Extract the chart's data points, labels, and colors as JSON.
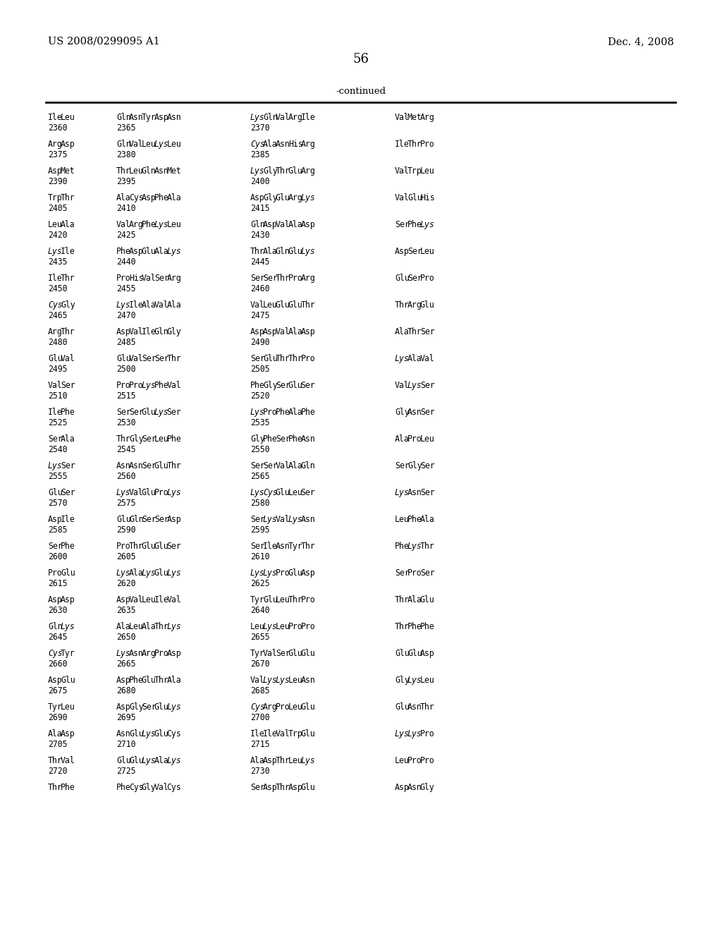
{
  "header_left": "US 2008/0299095 A1",
  "header_right": "Dec. 4, 2008",
  "page_number": "56",
  "continued_text": "-continued",
  "background_color": "#ffffff",
  "text_color": "#000000",
  "figsize": [
    10.24,
    13.2
  ],
  "dpi": 100,
  "rows": [
    [
      "Ile Leu",
      "2360",
      "Gln Asn Tyr Asp Asn",
      "2365",
      "Lys Gln Val Arg Ile",
      "2370",
      "Val Met Arg"
    ],
    [
      "Arg Asp",
      "2375",
      "Gln Val Leu Lys Leu",
      "2380",
      "Cys Ala Asn His Arg",
      "2385",
      "Ile Thr Pro"
    ],
    [
      "Asp Met",
      "2390",
      "Thr Leu Gln Asn Met",
      "2395",
      "Lys Gly Thr Glu Arg",
      "2400",
      "Val Trp Leu"
    ],
    [
      "Trp Thr",
      "2405",
      "Ala Cys Asp Phe Ala",
      "2410",
      "Asp Gly Glu Arg Lys",
      "2415",
      "Val Glu His"
    ],
    [
      "Leu Ala",
      "2420",
      "Val Arg Phe Lys Leu",
      "2425",
      "Gln Asp Val Ala Asp",
      "2430",
      "Ser Phe Lys"
    ],
    [
      "Lys Ile",
      "2435",
      "Phe Asp Glu Ala Lys",
      "2440",
      "Thr Ala Gln Glu Lys",
      "2445",
      "Asp Ser Leu"
    ],
    [
      "Ile Thr",
      "2450",
      "Pro His Val Ser Arg",
      "2455",
      "Ser Ser Thr Pro Arg",
      "2460",
      "Glu Ser Pro"
    ],
    [
      "Cys Gly",
      "2465",
      "Lys Ile Ala Val Ala",
      "2470",
      "Val Leu Glu Glu Thr",
      "2475",
      "Thr Arg Glu"
    ],
    [
      "Arg Thr",
      "2480",
      "Asp Val Ile Gln Gly",
      "2485",
      "Asp Asp Val Ala Asp",
      "2490",
      "Ala Thr Ser"
    ],
    [
      "Glu Val",
      "2495",
      "Glu Val Ser Ser Thr",
      "2500",
      "Ser Glu Thr Thr Pro",
      "2505",
      "Lys Ala Val"
    ],
    [
      "Val Ser",
      "2510",
      "Pro Pro Lys Phe Val",
      "2515",
      "Phe Gly Ser Glu Ser",
      "2520",
      "Val Lys Ser"
    ],
    [
      "Ile Phe",
      "2525",
      "Ser Ser Glu Lys Ser",
      "2530",
      "Lys Pro Phe Ala Phe",
      "2535",
      "Gly Asn Ser"
    ],
    [
      "Ser Ala",
      "2540",
      "Thr Gly Ser Leu Phe",
      "2545",
      "Gly Phe Ser Phe Asn",
      "2550",
      "Ala Pro Leu"
    ],
    [
      "Lys Ser",
      "2555",
      "Asn Asn Ser Glu Thr",
      "2560",
      "Ser Ser Val Ala Gln",
      "2565",
      "Ser Gly Ser"
    ],
    [
      "Glu Ser",
      "2570",
      "Lys Val Glu Pro Lys",
      "2575",
      "Lys Cys Glu Leu Ser",
      "2580",
      "Lys Asn Ser"
    ],
    [
      "Asp Ile",
      "2585",
      "Glu Gln Ser Ser Asp",
      "2590",
      "Ser Lys Val Lys Asn",
      "2595",
      "Leu Phe Ala"
    ],
    [
      "Ser Phe",
      "2600",
      "Pro Thr Glu Glu Ser",
      "2605",
      "Ser Ile Asn Tyr Thr",
      "2610",
      "Phe Lys Thr"
    ],
    [
      "Pro Glu",
      "2615",
      "Lys Ala Lys Glu Lys",
      "2620",
      "Lys Lys Pro Glu Asp",
      "2625",
      "Ser Pro Ser"
    ],
    [
      "Asp Asp",
      "2630",
      "Asp Val Leu Ile Val",
      "2635",
      "Tyr Glu Leu Thr Pro",
      "2640",
      "Thr Ala Glu"
    ],
    [
      "Gln Lys",
      "2645",
      "Ala Leu Ala Thr Lys",
      "2650",
      "Leu Lys Leu Pro Pro",
      "2655",
      "Thr Phe Phe"
    ],
    [
      "Cys Tyr",
      "2660",
      "Lys Asn Arg Pro Asp",
      "2665",
      "Tyr Val Ser Glu Glu",
      "2670",
      "Glu Glu Asp"
    ],
    [
      "Asp Glu",
      "2675",
      "Asp Phe Glu Thr Ala",
      "2680",
      "Val Lys Lys Leu Asn",
      "2685",
      "Gly Lys Leu"
    ],
    [
      "Tyr Leu",
      "2690",
      "Asp Gly Ser Glu Lys",
      "2695",
      "Cys Arg Pro Leu Glu",
      "2700",
      "Glu Asn Thr"
    ],
    [
      "Ala Asp",
      "2705",
      "Asn Glu Lys Glu Cys",
      "2710",
      "Ile Ile Val Trp Glu",
      "2715",
      "Lys Lys Pro"
    ],
    [
      "Thr Val",
      "2720",
      "Glu Glu Lys Ala Lys",
      "2725",
      "Ala Asp Thr Leu Lys",
      "2730",
      "Leu Pro Pro"
    ],
    [
      "Thr Phe",
      "",
      "Phe Cys Gly Val Cys",
      "",
      "Ser Asp Thr Asp Glu",
      "",
      "Asp Asn Gly"
    ]
  ],
  "italic_positions": {
    "col1": [],
    "col2_words": [
      "Lys"
    ],
    "col3_words": [
      "Lys",
      "Cys"
    ],
    "col4_words": [
      "Lys",
      "Cys"
    ]
  }
}
